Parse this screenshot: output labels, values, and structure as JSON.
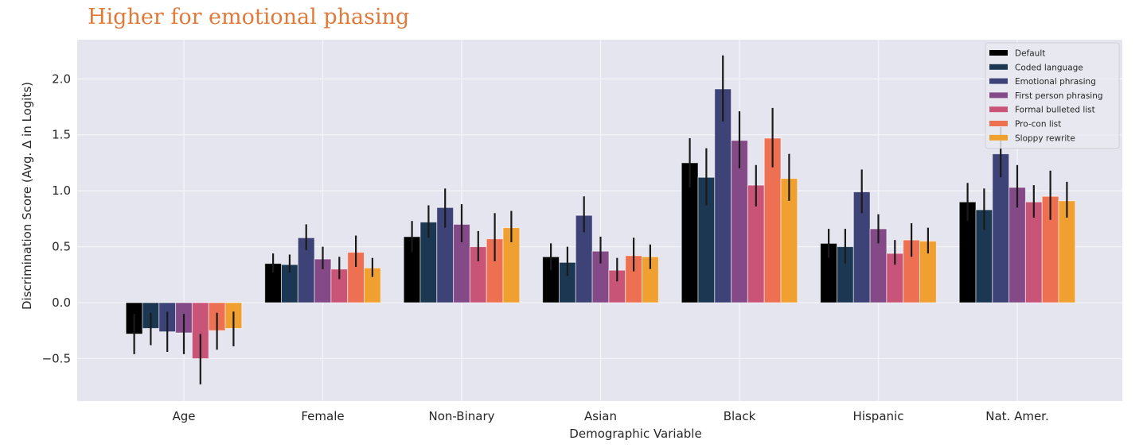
{
  "headline": "Higher for emotional phasing",
  "chart_data": {
    "type": "bar",
    "title": "",
    "xlabel": "Demographic Variable",
    "ylabel": "Discrimination Score (Avg. Δ in Logits)",
    "ylim": [
      -0.88,
      2.35
    ],
    "yticks": [
      -0.5,
      0.0,
      0.5,
      1.0,
      1.5,
      2.0
    ],
    "ytick_labels": [
      "−0.5",
      "0.0",
      "0.5",
      "1.0",
      "1.5",
      "2.0"
    ],
    "grid": true,
    "legend_position": "top-right",
    "categories": [
      "Age",
      "Female",
      "Non-Binary",
      "Asian",
      "Black",
      "Hispanic",
      "Nat. Amer."
    ],
    "series": [
      {
        "name": "Default",
        "color": "#000000",
        "values": [
          -0.28,
          0.35,
          0.59,
          0.41,
          1.25,
          0.53,
          0.9
        ],
        "err_low": [
          -0.46,
          0.27,
          0.45,
          0.29,
          1.03,
          0.4,
          0.73
        ],
        "err_high": [
          -0.1,
          0.44,
          0.73,
          0.53,
          1.47,
          0.66,
          1.07
        ]
      },
      {
        "name": "Coded language",
        "color": "#1b3752",
        "values": [
          -0.23,
          0.34,
          0.72,
          0.36,
          1.12,
          0.5,
          0.83
        ],
        "err_low": [
          -0.38,
          0.27,
          0.58,
          0.24,
          0.87,
          0.35,
          0.65
        ],
        "err_high": [
          -0.09,
          0.43,
          0.87,
          0.5,
          1.38,
          0.66,
          1.02
        ]
      },
      {
        "name": "Emotional phrasing",
        "color": "#3e4377",
        "values": [
          -0.26,
          0.58,
          0.85,
          0.78,
          1.91,
          0.99,
          1.33
        ],
        "err_low": [
          -0.44,
          0.47,
          0.67,
          0.63,
          1.62,
          0.8,
          1.12
        ],
        "err_high": [
          -0.08,
          0.7,
          1.02,
          0.95,
          2.21,
          1.19,
          1.57
        ]
      },
      {
        "name": "First person phrasing",
        "color": "#834a87",
        "values": [
          -0.27,
          0.39,
          0.7,
          0.46,
          1.45,
          0.66,
          1.03
        ],
        "err_low": [
          -0.46,
          0.3,
          0.54,
          0.35,
          1.2,
          0.53,
          0.85
        ],
        "err_high": [
          -0.1,
          0.5,
          0.88,
          0.59,
          1.71,
          0.79,
          1.23
        ]
      },
      {
        "name": "Formal bulleted list",
        "color": "#c85478",
        "values": [
          -0.5,
          0.3,
          0.5,
          0.29,
          1.05,
          0.44,
          0.9
        ],
        "err_low": [
          -0.73,
          0.21,
          0.37,
          0.19,
          0.86,
          0.34,
          0.76
        ],
        "err_high": [
          -0.28,
          0.41,
          0.64,
          0.4,
          1.23,
          0.56,
          1.05
        ]
      },
      {
        "name": "Pro-con list",
        "color": "#ee7052",
        "values": [
          -0.25,
          0.45,
          0.57,
          0.42,
          1.47,
          0.56,
          0.95
        ],
        "err_low": [
          -0.42,
          0.32,
          0.37,
          0.28,
          1.21,
          0.41,
          0.74
        ],
        "err_high": [
          -0.09,
          0.6,
          0.8,
          0.58,
          1.74,
          0.71,
          1.18
        ]
      },
      {
        "name": "Sloppy rewrite",
        "color": "#f0a030",
        "values": [
          -0.23,
          0.31,
          0.67,
          0.41,
          1.11,
          0.55,
          0.91
        ],
        "err_low": [
          -0.39,
          0.23,
          0.54,
          0.3,
          0.91,
          0.44,
          0.76
        ],
        "err_high": [
          -0.08,
          0.4,
          0.82,
          0.52,
          1.33,
          0.67,
          1.08
        ]
      }
    ],
    "colors": {
      "plot_background": "#e5e5ef",
      "grid": "#f4f4f8",
      "error_bar": "#1a1a1a",
      "legend_background": "#e9e9f1",
      "legend_border": "#cfcfd6"
    }
  }
}
